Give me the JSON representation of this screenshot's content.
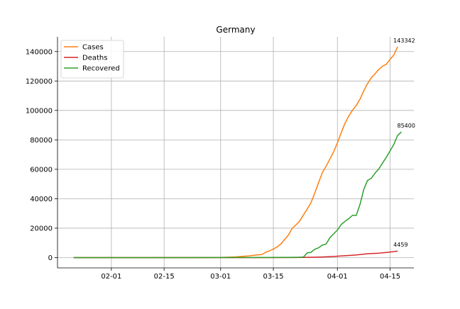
{
  "chart_data": {
    "type": "line",
    "title": "Germany",
    "xlabel": "",
    "ylabel": "",
    "x_range": [
      "2020-01-22",
      "2020-04-17"
    ],
    "ylim": [
      -7000,
      150000
    ],
    "x_ticks": [
      {
        "date": "2020-02-01",
        "label": "02-01"
      },
      {
        "date": "2020-02-15",
        "label": "02-15"
      },
      {
        "date": "2020-03-01",
        "label": "03-01"
      },
      {
        "date": "2020-03-15",
        "label": "03-15"
      },
      {
        "date": "2020-04-01",
        "label": "04-01"
      },
      {
        "date": "2020-04-15",
        "label": "04-15"
      }
    ],
    "y_ticks": [
      0,
      20000,
      40000,
      60000,
      80000,
      100000,
      120000,
      140000
    ],
    "grid": true,
    "legend_position": "top-left",
    "series": [
      {
        "name": "Cases",
        "color": "#ff7f0e",
        "end_label": "143342",
        "points": [
          [
            "2020-01-22",
            0
          ],
          [
            "2020-01-27",
            1
          ],
          [
            "2020-02-01",
            10
          ],
          [
            "2020-02-10",
            14
          ],
          [
            "2020-02-20",
            16
          ],
          [
            "2020-03-01",
            130
          ],
          [
            "2020-03-05",
            482
          ],
          [
            "2020-03-08",
            1040
          ],
          [
            "2020-03-11",
            1908
          ],
          [
            "2020-03-12",
            2078
          ],
          [
            "2020-03-13",
            3675
          ],
          [
            "2020-03-14",
            4585
          ],
          [
            "2020-03-15",
            5795
          ],
          [
            "2020-03-16",
            7272
          ],
          [
            "2020-03-17",
            9257
          ],
          [
            "2020-03-18",
            12327
          ],
          [
            "2020-03-19",
            15320
          ],
          [
            "2020-03-20",
            19848
          ],
          [
            "2020-03-21",
            22213
          ],
          [
            "2020-03-22",
            24873
          ],
          [
            "2020-03-23",
            29056
          ],
          [
            "2020-03-24",
            32986
          ],
          [
            "2020-03-25",
            37323
          ],
          [
            "2020-03-26",
            43938
          ],
          [
            "2020-03-27",
            50871
          ],
          [
            "2020-03-28",
            57695
          ],
          [
            "2020-03-29",
            62095
          ],
          [
            "2020-03-30",
            66885
          ],
          [
            "2020-03-31",
            71808
          ],
          [
            "2020-04-01",
            77872
          ],
          [
            "2020-04-02",
            84794
          ],
          [
            "2020-04-03",
            91159
          ],
          [
            "2020-04-04",
            96092
          ],
          [
            "2020-04-05",
            100123
          ],
          [
            "2020-04-06",
            103374
          ],
          [
            "2020-04-07",
            107663
          ],
          [
            "2020-04-08",
            113296
          ],
          [
            "2020-04-09",
            118181
          ],
          [
            "2020-04-10",
            122171
          ],
          [
            "2020-04-11",
            124908
          ],
          [
            "2020-04-12",
            127854
          ],
          [
            "2020-04-13",
            130072
          ],
          [
            "2020-04-14",
            131359
          ],
          [
            "2020-04-15",
            134753
          ],
          [
            "2020-04-16",
            137698
          ],
          [
            "2020-04-17",
            143342
          ]
        ]
      },
      {
        "name": "Deaths",
        "color": "#d62728",
        "end_label": "4459",
        "points": [
          [
            "2020-01-22",
            0
          ],
          [
            "2020-03-08",
            0
          ],
          [
            "2020-03-09",
            2
          ],
          [
            "2020-03-15",
            13
          ],
          [
            "2020-03-20",
            67
          ],
          [
            "2020-03-25",
            206
          ],
          [
            "2020-03-28",
            433
          ],
          [
            "2020-03-31",
            775
          ],
          [
            "2020-04-02",
            1107
          ],
          [
            "2020-04-04",
            1444
          ],
          [
            "2020-04-06",
            1810
          ],
          [
            "2020-04-08",
            2349
          ],
          [
            "2020-04-09",
            2607
          ],
          [
            "2020-04-10",
            2767
          ],
          [
            "2020-04-12",
            3022
          ],
          [
            "2020-04-14",
            3495
          ],
          [
            "2020-04-15",
            3804
          ],
          [
            "2020-04-16",
            4052
          ],
          [
            "2020-04-17",
            4459
          ]
        ]
      },
      {
        "name": "Recovered",
        "color": "#2ca02c",
        "end_label": "85400",
        "points": [
          [
            "2020-01-22",
            0
          ],
          [
            "2020-02-10",
            0
          ],
          [
            "2020-03-01",
            16
          ],
          [
            "2020-03-20",
            180
          ],
          [
            "2020-03-22",
            266
          ],
          [
            "2020-03-23",
            422
          ],
          [
            "2020-03-24",
            3243
          ],
          [
            "2020-03-25",
            3547
          ],
          [
            "2020-03-26",
            5673
          ],
          [
            "2020-03-27",
            6658
          ],
          [
            "2020-03-28",
            8481
          ],
          [
            "2020-03-29",
            9211
          ],
          [
            "2020-03-30",
            13500
          ],
          [
            "2020-03-31",
            16100
          ],
          [
            "2020-04-01",
            18700
          ],
          [
            "2020-04-02",
            22440
          ],
          [
            "2020-04-03",
            24575
          ],
          [
            "2020-04-04",
            26400
          ],
          [
            "2020-04-05",
            28700
          ],
          [
            "2020-04-06",
            28700
          ],
          [
            "2020-04-07",
            36081
          ],
          [
            "2020-04-08",
            46300
          ],
          [
            "2020-04-09",
            52407
          ],
          [
            "2020-04-10",
            53913
          ],
          [
            "2020-04-11",
            57400
          ],
          [
            "2020-04-12",
            60300
          ],
          [
            "2020-04-13",
            64300
          ],
          [
            "2020-04-14",
            68200
          ],
          [
            "2020-04-15",
            72600
          ],
          [
            "2020-04-16",
            77000
          ],
          [
            "2020-04-17",
            83114
          ],
          [
            "2020-04-18",
            85400
          ]
        ]
      }
    ]
  }
}
